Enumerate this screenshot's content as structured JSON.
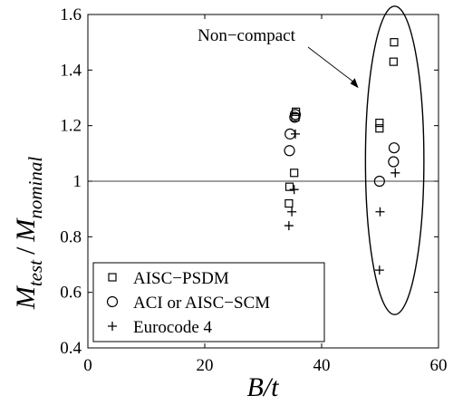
{
  "chart_data": {
    "type": "scatter",
    "xlabel": "B/t",
    "ylabel": {
      "main": "M",
      "sub1": "test",
      "slash": "/",
      "main2": "M",
      "sub2": "nominal"
    },
    "xlim": [
      0,
      60
    ],
    "ylim": [
      0.4,
      1.6
    ],
    "xticks": [
      0,
      20,
      40,
      60
    ],
    "yticks": [
      0.4,
      0.6,
      0.8,
      1,
      1.2,
      1.4,
      1.6
    ],
    "xtick_labels": [
      "0",
      "20",
      "40",
      "60"
    ],
    "ytick_labels": [
      "0.4",
      "0.6",
      "0.8",
      "1",
      "1.2",
      "1.4",
      "1.6"
    ],
    "reference_line_y": 1,
    "legend": {
      "placement": "bottom-left",
      "entries": [
        "AISC−PSDM",
        "ACI or AISC−SCM",
        "Eurocode 4"
      ]
    },
    "annotation": {
      "text": "Non−compact"
    },
    "series": [
      {
        "name": "AISC−PSDM",
        "marker": "square",
        "points": [
          [
            34.4,
            0.92
          ],
          [
            34.5,
            0.98
          ],
          [
            35.3,
            1.03
          ],
          [
            35.5,
            1.23
          ],
          [
            35.6,
            1.25
          ],
          [
            49.9,
            1.19
          ],
          [
            49.9,
            1.21
          ],
          [
            52.3,
            1.43
          ],
          [
            52.4,
            1.5
          ]
        ]
      },
      {
        "name": "ACI or AISC−SCM",
        "marker": "circle",
        "points": [
          [
            34.5,
            1.11
          ],
          [
            34.6,
            1.17
          ],
          [
            35.4,
            1.23
          ],
          [
            35.5,
            1.24
          ],
          [
            49.9,
            1.0
          ],
          [
            52.3,
            1.07
          ],
          [
            52.4,
            1.12
          ]
        ]
      },
      {
        "name": "Eurocode 4",
        "marker": "plus",
        "points": [
          [
            34.4,
            0.84
          ],
          [
            34.9,
            0.89
          ],
          [
            35.3,
            0.97
          ],
          [
            35.5,
            1.17
          ],
          [
            49.9,
            0.68
          ],
          [
            50.0,
            0.89
          ],
          [
            52.6,
            1.03
          ]
        ]
      }
    ]
  }
}
